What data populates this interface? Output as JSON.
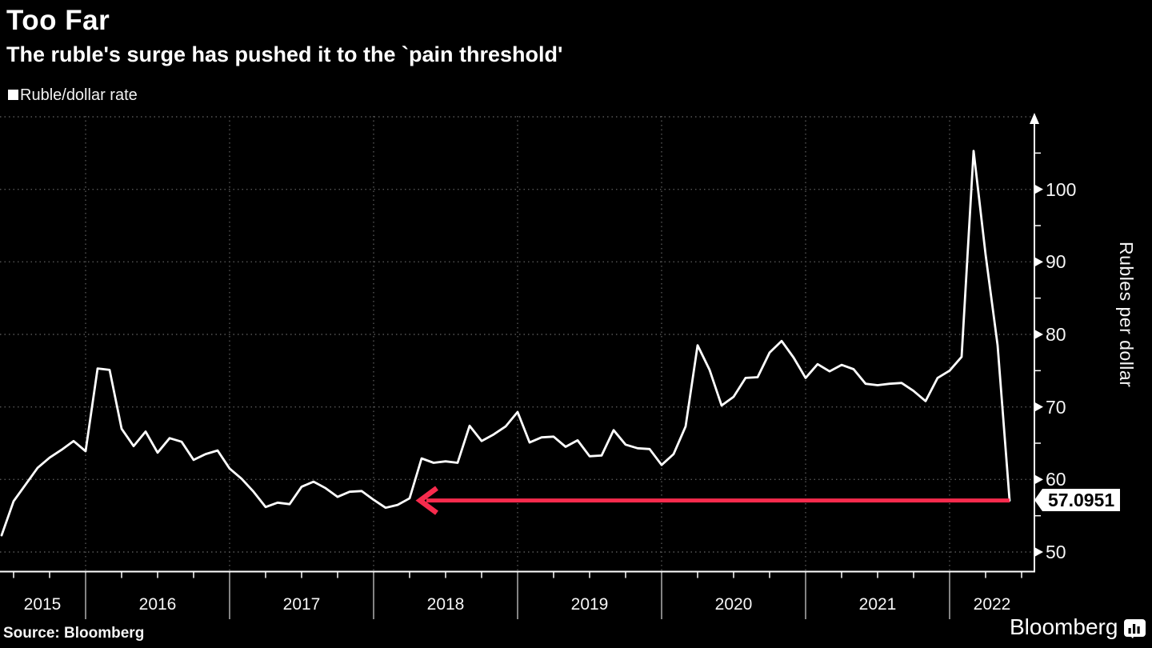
{
  "header": {
    "title": "Too Far",
    "subtitle": "The ruble's surge has pushed it to the `pain threshold'"
  },
  "legend": {
    "label": "Ruble/dollar rate",
    "marker_color": "#ffffff"
  },
  "chart_data": {
    "type": "line",
    "title": "Too Far",
    "subtitle": "The ruble's surge has pushed it to the `pain threshold'",
    "background": "#000000",
    "grid": true,
    "series": [
      {
        "name": "Ruble/dollar rate",
        "color": "#ffffff",
        "frequency": "monthly",
        "start": "2015-06",
        "end": "2022-06",
        "values": [
          52.3,
          57.0,
          59.3,
          61.6,
          63.0,
          64.1,
          65.3,
          63.9,
          75.3,
          75.1,
          67.0,
          64.6,
          66.6,
          63.7,
          65.7,
          65.2,
          62.7,
          63.5,
          64.0,
          61.5,
          60.1,
          58.3,
          56.2,
          56.8,
          56.6,
          59.0,
          59.7,
          58.8,
          57.6,
          58.3,
          58.4,
          57.2,
          56.1,
          56.5,
          57.4,
          62.9,
          62.3,
          62.5,
          62.3,
          67.4,
          65.3,
          66.2,
          67.3,
          69.3,
          65.1,
          65.8,
          65.9,
          64.5,
          65.4,
          63.2,
          63.3,
          66.8,
          64.8,
          64.3,
          64.2,
          62.0,
          63.5,
          67.3,
          78.5,
          75.1,
          70.2,
          71.4,
          74.0,
          74.1,
          77.5,
          79.1,
          76.8,
          74.0,
          75.9,
          74.9,
          75.8,
          75.2,
          73.2,
          73.0,
          73.2,
          73.3,
          72.2,
          70.8,
          74.0,
          75.0,
          76.9,
          105.3,
          91.0,
          78.5,
          57.0951
        ]
      }
    ],
    "x_tick_labels": [
      "2015",
      "2016",
      "2017",
      "2018",
      "2019",
      "2020",
      "2021",
      "2022"
    ],
    "y_axis": {
      "label": "Rubles per dollar",
      "side": "right",
      "ticks": [
        50,
        60,
        70,
        80,
        90,
        100
      ],
      "minor_ticks": [
        55,
        65,
        75,
        85,
        95,
        105
      ],
      "range": [
        47.2,
        110
      ]
    },
    "annotation_arrow": {
      "shape": "horizontal-arrow-left",
      "color": "#f72b4d",
      "at_value": 57.0951,
      "from": "2022-06",
      "points_back_to": "2018-04",
      "meaning": "current rate back down to early-2018 level"
    },
    "last_value_label": "57.0951",
    "grid_color": "#565656",
    "line_color": "#ffffff"
  },
  "badge": {
    "value": "57.0951"
  },
  "yaxis_title": "Rubles per dollar",
  "footer": {
    "source": "Source: Bloomberg",
    "logo": "Bloomberg"
  }
}
